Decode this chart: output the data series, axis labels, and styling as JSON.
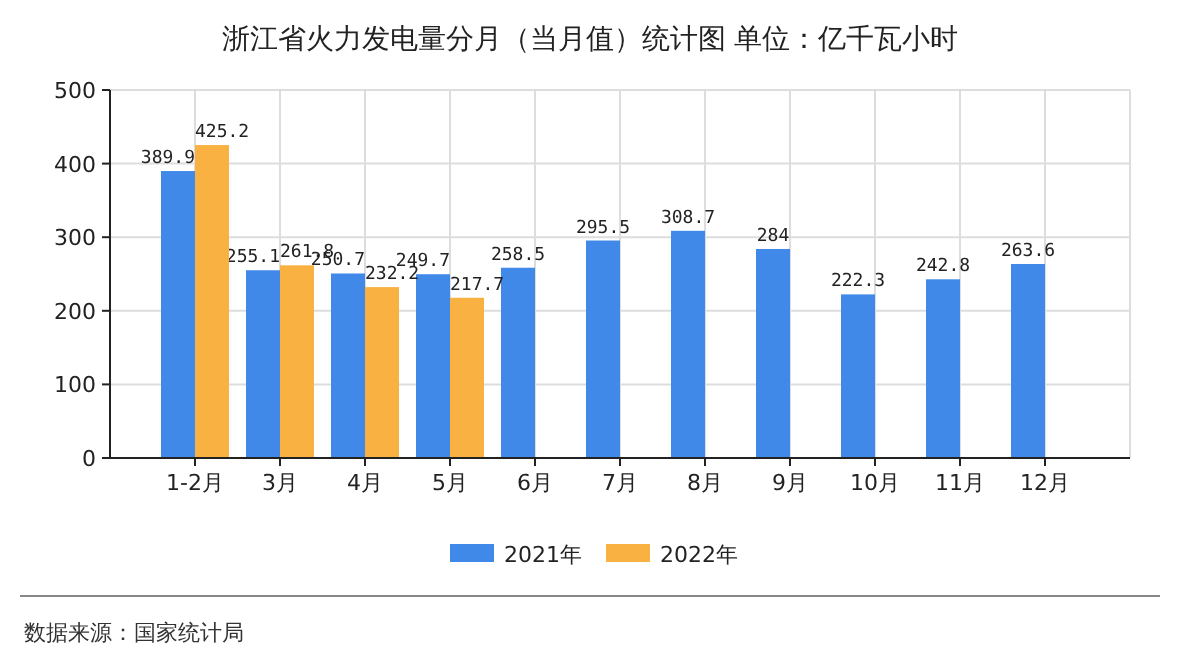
{
  "chart_data": {
    "type": "bar",
    "title": "浙江省火力发电量分月（当月值）统计图 单位：亿千瓦小时",
    "categories": [
      "1-2月",
      "3月",
      "4月",
      "5月",
      "6月",
      "7月",
      "8月",
      "9月",
      "10月",
      "11月",
      "12月"
    ],
    "series": [
      {
        "name": "2021年",
        "color": "#4189e8",
        "values": [
          389.9,
          255.1,
          250.7,
          249.7,
          258.5,
          295.5,
          308.7,
          284,
          222.3,
          242.8,
          263.6
        ]
      },
      {
        "name": "2022年",
        "color": "#f9b141",
        "values": [
          425.2,
          261.8,
          232.2,
          217.7,
          null,
          null,
          null,
          null,
          null,
          null,
          null
        ]
      }
    ],
    "ylim": [
      0,
      500
    ],
    "yticks": [
      0,
      100,
      200,
      300,
      400,
      500
    ],
    "grid": true,
    "legend": "bottom",
    "data_labels": true,
    "annotations": [
      "数据来源：国家统计局"
    ]
  }
}
